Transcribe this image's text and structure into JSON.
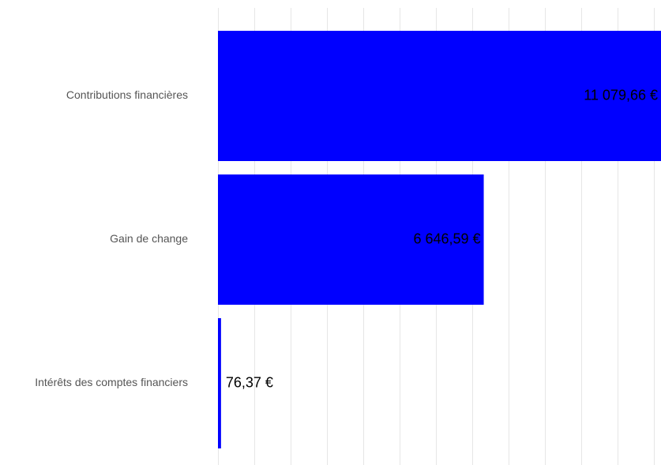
{
  "chart_data": {
    "type": "bar",
    "orientation": "horizontal",
    "title": "",
    "xlabel": "",
    "ylabel": "",
    "categories": [
      "Contributions financières",
      "Gain de change",
      "Intérêts des comptes financiers"
    ],
    "values": [
      11079.66,
      6646.59,
      76.37
    ],
    "value_labels": [
      "11 079,66 €",
      "6 646,59 €",
      "76,37 €"
    ],
    "xlim": [
      0,
      11079.66
    ],
    "grid": true,
    "legend": "none",
    "colors": {
      "bar": "#0000ff",
      "grid": "#e6e6e6",
      "category_text": "#555555",
      "value_text": "#000000"
    }
  }
}
